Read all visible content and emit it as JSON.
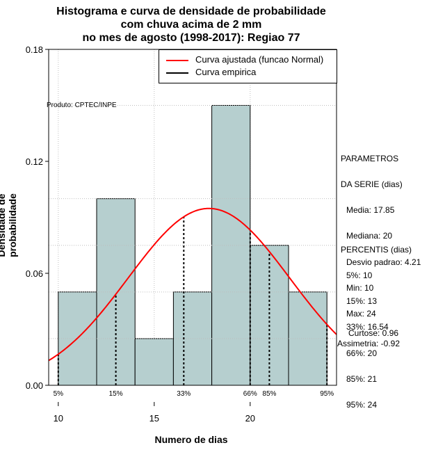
{
  "title_lines": [
    "Histograma e curva de densidade de probabilidade",
    "com chuva acima de 2 mm",
    "no mes de agosto (1998-2017): Regiao 77"
  ],
  "chart_data": {
    "type": "bar",
    "subtype": "histogram_with_density",
    "title": "Histograma e curva de densidade de probabilidade com chuva acima de 2 mm no mes de agosto (1998-2017): Regiao 77",
    "xlabel": "Numero de dias",
    "ylabel": "Densidade de probabilidade",
    "xlim": [
      9.5,
      24.5
    ],
    "ylim": [
      0,
      0.18
    ],
    "x_ticks": [
      10,
      15,
      20
    ],
    "y_ticks": [
      0.0,
      0.06,
      0.12,
      0.18
    ],
    "y_tick_labels": [
      "0.00",
      "0.06",
      "0.12",
      "0.18"
    ],
    "grid": true,
    "bin_width": 2,
    "bars": [
      {
        "x0": 10,
        "x1": 12,
        "density": 0.05
      },
      {
        "x0": 12,
        "x1": 14,
        "density": 0.1
      },
      {
        "x0": 14,
        "x1": 16,
        "density": 0.025
      },
      {
        "x0": 16,
        "x1": 18,
        "density": 0.05
      },
      {
        "x0": 18,
        "x1": 20,
        "density": 0.15
      },
      {
        "x0": 20,
        "x1": 22,
        "density": 0.075
      },
      {
        "x0": 22,
        "x1": 24,
        "density": 0.05
      }
    ],
    "normal_fit": {
      "mean": 17.85,
      "sd": 4.21
    },
    "percentile_lines": [
      {
        "label": "5%",
        "value": 10
      },
      {
        "label": "15%",
        "value": 13
      },
      {
        "label": "33%",
        "value": 16.54
      },
      {
        "label": "66%",
        "value": 20
      },
      {
        "label": "85%",
        "value": 21
      },
      {
        "label": "95%",
        "value": 24
      }
    ],
    "legend": [
      {
        "label": "Curva ajustada (funcao Normal)",
        "color": "#ff0000"
      },
      {
        "label": "Curva empirica",
        "color": "#000000"
      }
    ],
    "legend_position": "top-right",
    "annotation": "Produto: CPTEC/INPE"
  },
  "colors": {
    "bar_fill": "#b6cfcf",
    "curve": "#ff0000",
    "grid": "#bebebe"
  },
  "params": {
    "heading": [
      "PARAMETROS",
      "DA SERIE (dias)"
    ],
    "items": [
      "Media: 17.85",
      "Mediana: 20",
      "Desvio padrao: 4.21",
      "Min: 10",
      "Max: 24"
    ]
  },
  "percentis": {
    "heading": "PERCENTIS (dias)",
    "items": [
      "5%: 10",
      "15%: 13",
      "33%: 16.54",
      "66%: 20",
      "85%: 21",
      "95%: 24"
    ]
  },
  "shape": {
    "curtose": "Curtose: 0.96",
    "assimetria": "Assimetria: -0.92"
  }
}
